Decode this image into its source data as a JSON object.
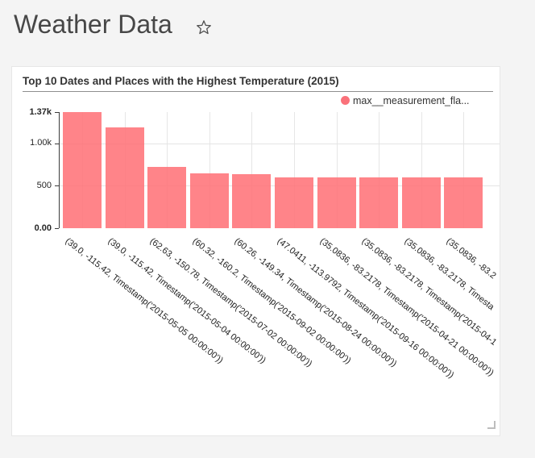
{
  "page": {
    "title": "Weather Data",
    "background": "#f4f4f4"
  },
  "card": {
    "title": "Top 10 Dates and Places with the Highest Temperature (2015)",
    "legend": {
      "label": "max__measurement_fla...",
      "color": "#fa717a"
    }
  },
  "chart_data": {
    "type": "bar",
    "title": "Top 10 Dates and Places with the Highest Temperature (2015)",
    "legend_entries": [
      "max__measurement_fla..."
    ],
    "legend_position": "top-right",
    "bar_color": "#ff6f74",
    "categories": [
      "(39.0, -115.42, Timestamp('2015-05-05 00:00:00'))",
      "(39.0, -115.42, Timestamp('2015-05-04 00:00:00'))",
      "(62.63, -150.78, Timestamp('2015-07-02 00:00:00'))",
      "(60.32, -160.2, Timestamp('2015-09-02 00:00:00'))",
      "(60.26, -149.34, Timestamp('2015-08-24 00:00:00'))",
      "(47.0411, -113.9792, Timestamp('2015-09-16 00:00:00'))",
      "(35.0836, -83.2178, Timestamp('2015-04-21 00:00:00'))",
      "(35.0836, -83.2178, Timestamp('2015-04-1",
      "(35.0836, -83.2178, Timesta",
      "(35.0836, -83.2"
    ],
    "values": [
      1370,
      1190,
      720,
      645,
      635,
      600,
      600,
      598,
      597,
      596
    ],
    "xlabel": "",
    "ylabel": "",
    "ylim": [
      0,
      1370
    ],
    "yticks": [
      {
        "label": "1.37k",
        "value": 1370,
        "bold": true
      },
      {
        "label": "1.00k",
        "value": 1000,
        "bold": false
      },
      {
        "label": "500",
        "value": 500,
        "bold": false
      },
      {
        "label": "0.00",
        "value": 0,
        "bold": true
      }
    ],
    "grid": "on",
    "x_tick_angle": 38
  }
}
